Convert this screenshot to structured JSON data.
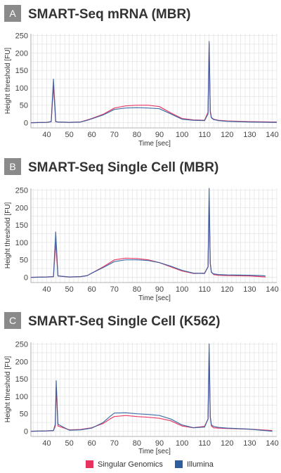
{
  "colors": {
    "singular": "#e8325e",
    "illumina": "#2d5f9e",
    "badge": "#8a8a8a"
  },
  "legend": [
    {
      "name": "Singular Genomics",
      "color": "#e8325e"
    },
    {
      "name": "Illumina",
      "color": "#2d5f9e"
    }
  ],
  "chart_data": [
    {
      "type": "line",
      "panel": "A",
      "title": "SMART-Seq mRNA (MBR)",
      "xlabel": "Time [sec]",
      "ylabel": "Height threshold [FU]",
      "xlim": [
        33,
        142
      ],
      "ylim": [
        -15,
        255
      ],
      "xticks": [
        "40",
        "50",
        "60",
        "70",
        "80",
        "90",
        "100",
        "110",
        "120",
        "130",
        "140"
      ],
      "yticks": [
        "0",
        "50",
        "100",
        "150",
        "200",
        "250"
      ],
      "grid": true,
      "series": [
        {
          "name": "Singular Genomics",
          "color": "#e8325e",
          "x": [
            33,
            40,
            42,
            43,
            44,
            45,
            50,
            55,
            57,
            60,
            65,
            70,
            75,
            80,
            85,
            90,
            95,
            100,
            105,
            110,
            111.5,
            112,
            112.5,
            113,
            114,
            116,
            120,
            130,
            140,
            142
          ],
          "y": [
            0,
            1,
            3,
            105,
            3,
            2,
            1,
            2,
            6,
            12,
            24,
            42,
            48,
            50,
            50,
            46,
            28,
            12,
            8,
            7,
            30,
            225,
            35,
            15,
            10,
            7,
            5,
            3,
            2,
            2
          ]
        },
        {
          "name": "Illumina",
          "color": "#2d5f9e",
          "x": [
            33,
            40,
            42,
            43,
            44,
            45,
            50,
            55,
            57,
            60,
            65,
            70,
            75,
            80,
            85,
            90,
            95,
            100,
            105,
            110,
            111.5,
            112,
            112.5,
            113,
            114,
            116,
            120,
            130,
            140,
            142
          ],
          "y": [
            0,
            1,
            3,
            125,
            3,
            2,
            1,
            2,
            5,
            11,
            22,
            38,
            42,
            43,
            42,
            40,
            25,
            10,
            7,
            6,
            25,
            233,
            30,
            14,
            9,
            6,
            4,
            2,
            1,
            1
          ]
        }
      ]
    },
    {
      "type": "line",
      "panel": "B",
      "title": "SMART-Seq Single Cell (MBR)",
      "xlabel": "Time [sec]",
      "ylabel": "Height threshold [FU]",
      "xlim": [
        33,
        142
      ],
      "ylim": [
        -15,
        255
      ],
      "xticks": [
        "40",
        "50",
        "60",
        "70",
        "80",
        "90",
        "100",
        "110",
        "120",
        "130",
        "140"
      ],
      "yticks": [
        "0",
        "50",
        "100",
        "150",
        "200",
        "250"
      ],
      "grid": true,
      "series": [
        {
          "name": "Singular Genomics",
          "color": "#e8325e",
          "x": [
            33,
            40,
            43,
            44,
            45,
            50,
            55,
            58,
            60,
            65,
            70,
            75,
            80,
            85,
            90,
            95,
            100,
            105,
            110,
            111.5,
            112,
            112.5,
            113,
            114,
            116,
            120,
            130,
            135,
            137
          ],
          "y": [
            0,
            1,
            2,
            100,
            4,
            1,
            2,
            5,
            12,
            30,
            50,
            55,
            54,
            50,
            42,
            30,
            18,
            11,
            12,
            30,
            220,
            40,
            15,
            8,
            6,
            5,
            4,
            2,
            1
          ]
        },
        {
          "name": "Illumina",
          "color": "#2d5f9e",
          "x": [
            33,
            40,
            43,
            44,
            45,
            50,
            55,
            58,
            60,
            65,
            70,
            75,
            80,
            85,
            90,
            95,
            100,
            105,
            110,
            111.5,
            112,
            112.5,
            113,
            114,
            116,
            120,
            130,
            135,
            137
          ],
          "y": [
            0,
            1,
            2,
            130,
            4,
            1,
            2,
            5,
            12,
            28,
            45,
            50,
            50,
            48,
            42,
            32,
            20,
            12,
            11,
            30,
            255,
            40,
            14,
            10,
            8,
            7,
            6,
            5,
            4
          ]
        }
      ]
    },
    {
      "type": "line",
      "panel": "C",
      "title": "SMART-Seq Single Cell (K562)",
      "xlabel": "Time [sec]",
      "ylabel": "Height threshold [FU]",
      "xlim": [
        33,
        142
      ],
      "ylim": [
        -15,
        255
      ],
      "xticks": [
        "40",
        "50",
        "60",
        "70",
        "80",
        "90",
        "100",
        "110",
        "120",
        "130",
        "140"
      ],
      "yticks": [
        "0",
        "50",
        "100",
        "150",
        "200",
        "250"
      ],
      "grid": true,
      "series": [
        {
          "name": "Singular Genomics",
          "color": "#e8325e",
          "x": [
            33,
            40,
            43,
            43.8,
            44.2,
            45,
            50,
            55,
            60,
            65,
            68,
            70,
            75,
            80,
            85,
            90,
            95,
            100,
            105,
            110,
            111.5,
            112,
            112.5,
            113,
            114,
            116,
            120,
            130,
            135,
            140
          ],
          "y": [
            0,
            1,
            2,
            15,
            125,
            15,
            4,
            5,
            10,
            22,
            35,
            42,
            45,
            42,
            40,
            37,
            30,
            15,
            10,
            14,
            35,
            225,
            40,
            15,
            10,
            9,
            8,
            6,
            4,
            2
          ]
        },
        {
          "name": "Illumina",
          "color": "#2d5f9e",
          "x": [
            33,
            40,
            43,
            43.8,
            44.2,
            45,
            50,
            55,
            60,
            65,
            68,
            70,
            75,
            80,
            85,
            90,
            95,
            100,
            105,
            110,
            111.5,
            112,
            112.5,
            113,
            114,
            116,
            120,
            130,
            135,
            140
          ],
          "y": [
            0,
            1,
            2,
            20,
            145,
            20,
            3,
            4,
            9,
            25,
            42,
            52,
            53,
            50,
            48,
            45,
            35,
            18,
            10,
            12,
            35,
            250,
            42,
            18,
            14,
            11,
            9,
            6,
            3,
            0
          ]
        }
      ]
    }
  ]
}
